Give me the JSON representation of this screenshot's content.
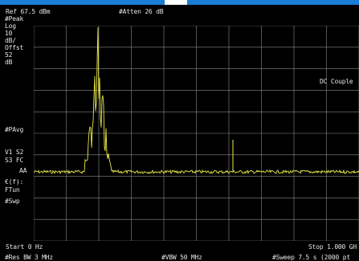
{
  "header": {
    "ref_level": "Ref 67.5 dBm",
    "attenuation": "#Atten 26 dB"
  },
  "left_panel": {
    "detector": "#Peak",
    "scale": [
      "Log",
      "10",
      "dB/"
    ],
    "offset": [
      "Offst",
      "52",
      "dB"
    ],
    "avg": "#PAvg",
    "trace_line1": "V1  S2",
    "trace_line2": "S3  FC",
    "trace_line3": "AA",
    "freq_corr": "€(f):",
    "tun": "FTun",
    "sweep": "#Swp"
  },
  "coupling": "DC Couple",
  "footer": {
    "start": "Start 0 Hz",
    "stop": "Stop 1.000 GH",
    "res_bw": "#Res BW 3 MHz",
    "vbw": "#VBW 50 MHz",
    "sweep_time": "#Sweep 7.5 s (2000 pt"
  },
  "colors": {
    "trace": "#e8e84a",
    "grid": "#8a8a8a",
    "background": "#000000",
    "topbar": "#1a7fd6"
  }
}
